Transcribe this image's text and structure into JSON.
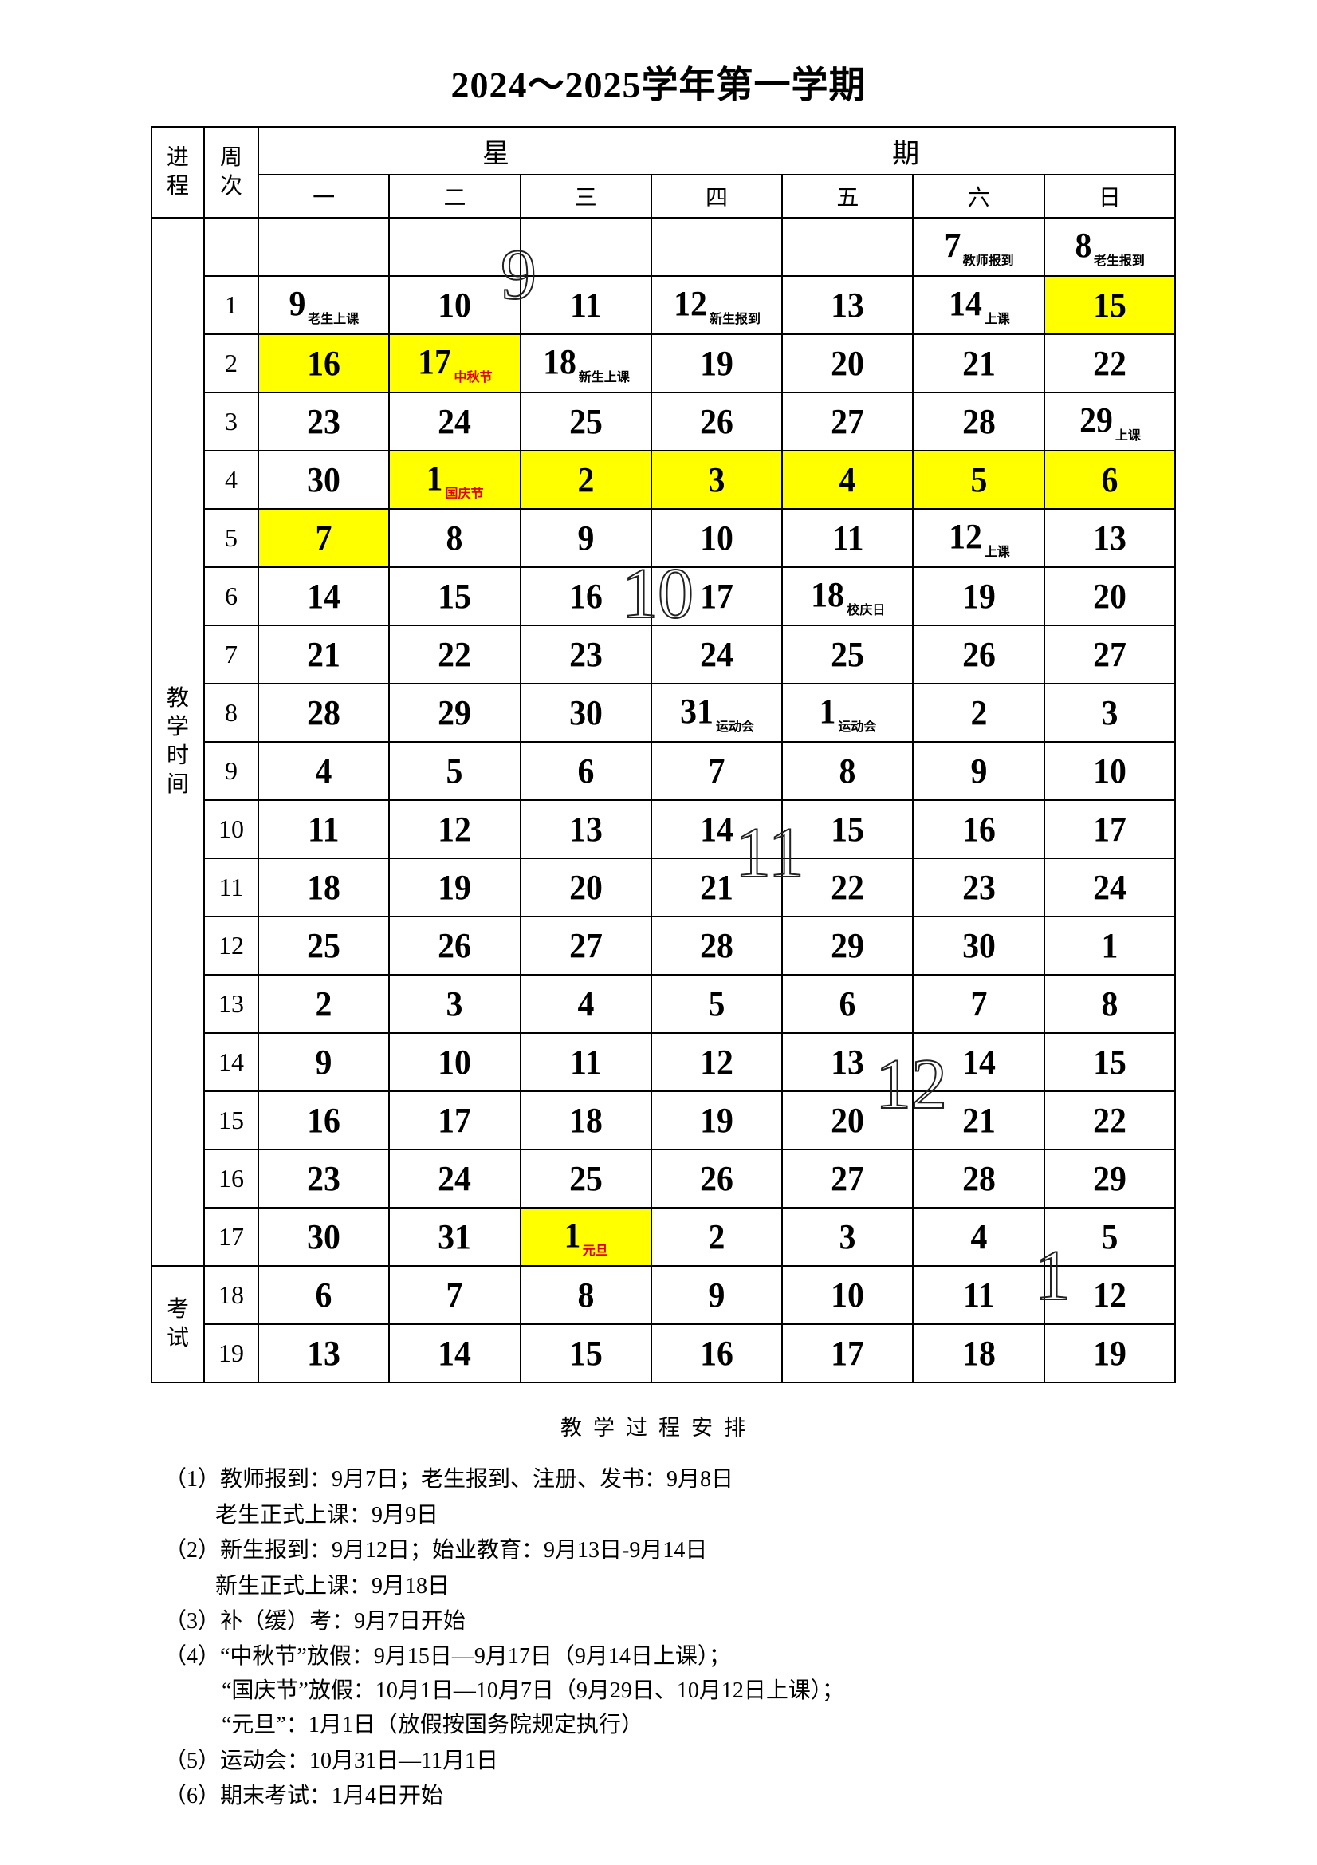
{
  "title": "2024～2025学年第一学期",
  "header": {
    "progress": "进程",
    "week": "周次",
    "xing": "星",
    "qi": "期",
    "days": [
      "一",
      "二",
      "三",
      "四",
      "五",
      "六",
      "日"
    ]
  },
  "side": {
    "teaching": "教学时间",
    "exam": "考试"
  },
  "colors": {
    "highlight": "#ffff00",
    "holiday_note": "#e00000"
  },
  "rows": [
    {
      "week": "",
      "days": [
        {
          "d": ""
        },
        {
          "d": ""
        },
        {
          "d": ""
        },
        {
          "d": ""
        },
        {
          "d": ""
        },
        {
          "d": "7",
          "note": "教师报到"
        },
        {
          "d": "8",
          "note": "老生报到"
        }
      ]
    },
    {
      "week": "1",
      "days": [
        {
          "d": "9",
          "note": "老生上课"
        },
        {
          "d": "10"
        },
        {
          "d": "11"
        },
        {
          "d": "12",
          "note": "新生报到"
        },
        {
          "d": "13"
        },
        {
          "d": "14",
          "note": "上课"
        },
        {
          "d": "15",
          "hl": true
        }
      ]
    },
    {
      "week": "2",
      "days": [
        {
          "d": "16",
          "hl": true
        },
        {
          "d": "17",
          "hl": true,
          "note": "中秋节",
          "red": true
        },
        {
          "d": "18",
          "note": "新生上课"
        },
        {
          "d": "19"
        },
        {
          "d": "20"
        },
        {
          "d": "21"
        },
        {
          "d": "22"
        }
      ]
    },
    {
      "week": "3",
      "days": [
        {
          "d": "23"
        },
        {
          "d": "24"
        },
        {
          "d": "25"
        },
        {
          "d": "26"
        },
        {
          "d": "27"
        },
        {
          "d": "28"
        },
        {
          "d": "29",
          "note": "上课"
        }
      ]
    },
    {
      "week": "4",
      "days": [
        {
          "d": "30"
        },
        {
          "d": "1",
          "hl": true,
          "note": "国庆节",
          "red": true
        },
        {
          "d": "2",
          "hl": true
        },
        {
          "d": "3",
          "hl": true
        },
        {
          "d": "4",
          "hl": true
        },
        {
          "d": "5",
          "hl": true
        },
        {
          "d": "6",
          "hl": true
        }
      ]
    },
    {
      "week": "5",
      "days": [
        {
          "d": "7",
          "hl": true
        },
        {
          "d": "8"
        },
        {
          "d": "9"
        },
        {
          "d": "10"
        },
        {
          "d": "11"
        },
        {
          "d": "12",
          "note": "上课"
        },
        {
          "d": "13"
        }
      ]
    },
    {
      "week": "6",
      "days": [
        {
          "d": "14"
        },
        {
          "d": "15"
        },
        {
          "d": "16"
        },
        {
          "d": "17"
        },
        {
          "d": "18",
          "note": "校庆日"
        },
        {
          "d": "19"
        },
        {
          "d": "20"
        }
      ]
    },
    {
      "week": "7",
      "days": [
        {
          "d": "21"
        },
        {
          "d": "22"
        },
        {
          "d": "23"
        },
        {
          "d": "24"
        },
        {
          "d": "25"
        },
        {
          "d": "26"
        },
        {
          "d": "27"
        }
      ]
    },
    {
      "week": "8",
      "days": [
        {
          "d": "28"
        },
        {
          "d": "29"
        },
        {
          "d": "30"
        },
        {
          "d": "31",
          "note": "运动会"
        },
        {
          "d": "1",
          "note": "运动会"
        },
        {
          "d": "2"
        },
        {
          "d": "3"
        }
      ]
    },
    {
      "week": "9",
      "days": [
        {
          "d": "4"
        },
        {
          "d": "5"
        },
        {
          "d": "6"
        },
        {
          "d": "7"
        },
        {
          "d": "8"
        },
        {
          "d": "9"
        },
        {
          "d": "10"
        }
      ]
    },
    {
      "week": "10",
      "days": [
        {
          "d": "11"
        },
        {
          "d": "12"
        },
        {
          "d": "13"
        },
        {
          "d": "14"
        },
        {
          "d": "15"
        },
        {
          "d": "16"
        },
        {
          "d": "17"
        }
      ]
    },
    {
      "week": "11",
      "days": [
        {
          "d": "18"
        },
        {
          "d": "19"
        },
        {
          "d": "20"
        },
        {
          "d": "21"
        },
        {
          "d": "22"
        },
        {
          "d": "23"
        },
        {
          "d": "24"
        }
      ]
    },
    {
      "week": "12",
      "days": [
        {
          "d": "25"
        },
        {
          "d": "26"
        },
        {
          "d": "27"
        },
        {
          "d": "28"
        },
        {
          "d": "29"
        },
        {
          "d": "30"
        },
        {
          "d": "1"
        }
      ]
    },
    {
      "week": "13",
      "days": [
        {
          "d": "2"
        },
        {
          "d": "3"
        },
        {
          "d": "4"
        },
        {
          "d": "5"
        },
        {
          "d": "6"
        },
        {
          "d": "7"
        },
        {
          "d": "8"
        }
      ]
    },
    {
      "week": "14",
      "days": [
        {
          "d": "9"
        },
        {
          "d": "10"
        },
        {
          "d": "11"
        },
        {
          "d": "12"
        },
        {
          "d": "13"
        },
        {
          "d": "14"
        },
        {
          "d": "15"
        }
      ]
    },
    {
      "week": "15",
      "days": [
        {
          "d": "16"
        },
        {
          "d": "17"
        },
        {
          "d": "18"
        },
        {
          "d": "19"
        },
        {
          "d": "20"
        },
        {
          "d": "21"
        },
        {
          "d": "22"
        }
      ]
    },
    {
      "week": "16",
      "days": [
        {
          "d": "23"
        },
        {
          "d": "24"
        },
        {
          "d": "25"
        },
        {
          "d": "26"
        },
        {
          "d": "27"
        },
        {
          "d": "28"
        },
        {
          "d": "29"
        }
      ]
    },
    {
      "week": "17",
      "days": [
        {
          "d": "30"
        },
        {
          "d": "31"
        },
        {
          "d": "1",
          "hl": true,
          "note": "元旦",
          "red": true
        },
        {
          "d": "2"
        },
        {
          "d": "3"
        },
        {
          "d": "4"
        },
        {
          "d": "5"
        }
      ]
    },
    {
      "week": "18",
      "days": [
        {
          "d": "6"
        },
        {
          "d": "7"
        },
        {
          "d": "8"
        },
        {
          "d": "9"
        },
        {
          "d": "10"
        },
        {
          "d": "11"
        },
        {
          "d": "12"
        }
      ]
    },
    {
      "week": "19",
      "days": [
        {
          "d": "13"
        },
        {
          "d": "14"
        },
        {
          "d": "15"
        },
        {
          "d": "16"
        },
        {
          "d": "17"
        },
        {
          "d": "18"
        },
        {
          "d": "19"
        }
      ]
    }
  ],
  "month_markers": [
    "9",
    "10",
    "11",
    "12",
    "1"
  ],
  "arrangement": {
    "title": "教学过程安排",
    "lines": [
      "（1）教师报到：9月7日；老生报到、注册、发书：9月8日",
      "老生正式上课：9月9日",
      "（2）新生报到：9月12日；始业教育：9月13日-9月14日",
      "新生正式上课：9月18日",
      "（3）补（缓）考：9月7日开始",
      "（4）“中秋节”放假：9月15日—9月17日（9月14日上课）；",
      "“国庆节”放假：10月1日—10月7日（9月29日、10月12日上课）；",
      "“元旦”：1月1日（放假按国务院规定执行）",
      "（5）运动会：10月31日—11月1日",
      "（6）期末考试：1月4日开始"
    ]
  }
}
